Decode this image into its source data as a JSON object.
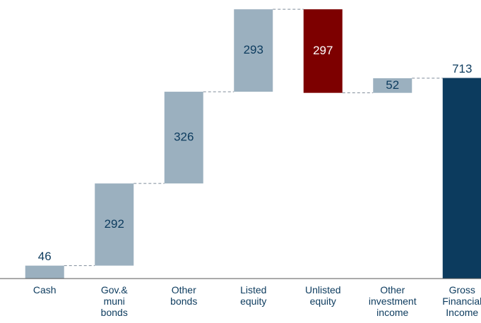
{
  "chart_data": {
    "type": "waterfall",
    "categories": [
      "Cash",
      "Gov.&\nmuni\nbonds",
      "Other\nbonds",
      "Listed\nequity",
      "Unlisted\nequity",
      "Other\ninvestment\nincome",
      "Gross\nFinancial\nIncome"
    ],
    "values": [
      46,
      292,
      326,
      293,
      -297,
      52,
      713
    ],
    "value_labels": [
      "46",
      "292",
      "326",
      "293",
      "297",
      "52",
      "713"
    ],
    "measure": [
      "relative",
      "relative",
      "relative",
      "relative",
      "relative",
      "relative",
      "total"
    ],
    "colors": {
      "increase": "#9bb0bf",
      "decrease": "#7d0000",
      "total": "#0c3b5e"
    },
    "ylim": [
      0,
      990
    ]
  }
}
